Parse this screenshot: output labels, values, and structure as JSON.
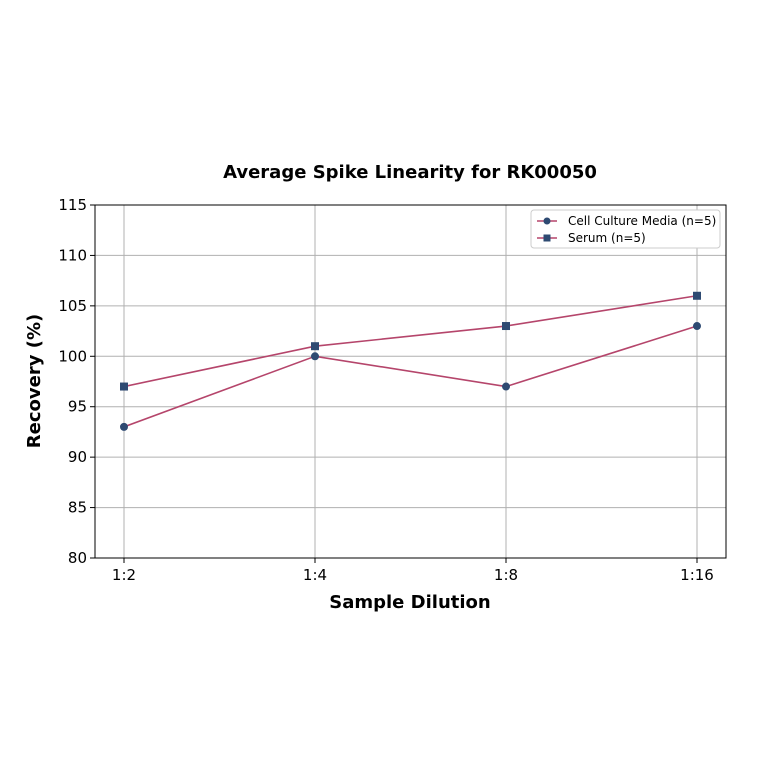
{
  "chart_data": {
    "type": "line",
    "title": "Average Spike Linearity for RK00050",
    "xlabel": "Sample Dilution",
    "ylabel": "Recovery (%)",
    "categories": [
      "1:2",
      "1:4",
      "1:8",
      "1:16"
    ],
    "ylim": [
      80,
      115
    ],
    "yticks": [
      80,
      85,
      90,
      95,
      100,
      105,
      110,
      115
    ],
    "grid": true,
    "legend_position": "upper right",
    "series": [
      {
        "name": "Cell Culture Media (n=5)",
        "marker": "circle",
        "line_color": "#b5456b",
        "marker_color": "#2e4a72",
        "values": [
          93,
          100,
          97,
          103
        ]
      },
      {
        "name": "Serum (n=5)",
        "marker": "square",
        "line_color": "#b5456b",
        "marker_color": "#2e4a72",
        "values": [
          97,
          101,
          103,
          106
        ]
      }
    ]
  }
}
